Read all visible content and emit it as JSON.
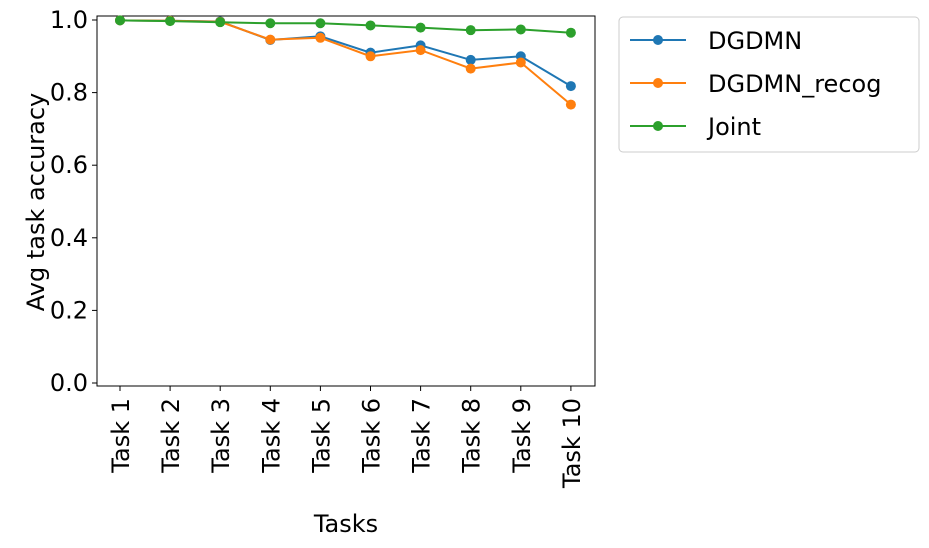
{
  "chart_data": {
    "type": "line",
    "title": "",
    "xlabel": "Tasks",
    "ylabel": "Avg task accuracy",
    "categories": [
      "Task 1",
      "Task 2",
      "Task 3",
      "Task 4",
      "Task 5",
      "Task 6",
      "Task 7",
      "Task 8",
      "Task 9",
      "Task 10"
    ],
    "ylim": [
      0.0,
      1.0
    ],
    "yticks": [
      "0.0",
      "0.2",
      "0.4",
      "0.6",
      "0.8",
      "1.0"
    ],
    "grid": false,
    "legend_position": "outside-top-right",
    "series": [
      {
        "name": "DGDMN",
        "color": "#1f77b4",
        "values": [
          0.999,
          0.998,
          0.996,
          0.945,
          0.955,
          0.91,
          0.93,
          0.89,
          0.9,
          0.818
        ]
      },
      {
        "name": "DGDMN_recog",
        "color": "#ff7f0e",
        "values": [
          0.999,
          0.998,
          0.995,
          0.946,
          0.951,
          0.9,
          0.917,
          0.866,
          0.883,
          0.767
        ]
      },
      {
        "name": "Joint",
        "color": "#2ca02c",
        "values": [
          0.999,
          0.997,
          0.994,
          0.991,
          0.991,
          0.985,
          0.979,
          0.972,
          0.974,
          0.965
        ]
      }
    ]
  }
}
